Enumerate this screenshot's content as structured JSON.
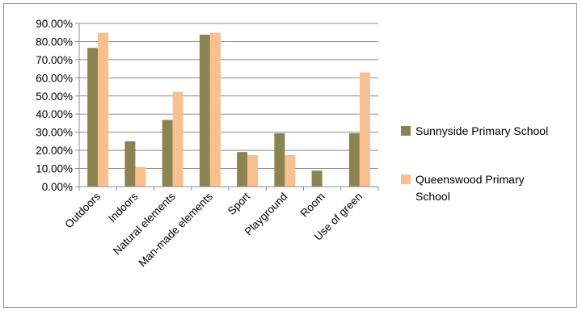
{
  "chart_data": {
    "type": "bar",
    "categories": [
      "Outdoors",
      "Indoors",
      "Natural elements",
      "Man-made elements",
      "Sport",
      "Playground",
      "Room",
      "Use of green"
    ],
    "series": [
      {
        "name": "Sunnyside Primary School",
        "color": "#8b8350",
        "values": [
          76.5,
          25.0,
          36.8,
          83.8,
          19.1,
          29.4,
          8.8,
          29.4
        ]
      },
      {
        "name": "Queenswood Primary School",
        "color": "#f9bf8f",
        "values": [
          84.9,
          10.8,
          52.2,
          84.9,
          17.4,
          17.4,
          0,
          63.0
        ]
      }
    ],
    "title": "",
    "xlabel": "",
    "ylabel": "",
    "ylim": [
      0,
      90
    ],
    "yticks": [
      "0.00%",
      "10.00%",
      "20.00%",
      "30.00%",
      "40.00%",
      "50.00%",
      "60.00%",
      "70.00%",
      "80.00%",
      "90.00%"
    ],
    "grid": true,
    "legend_position": "right"
  }
}
